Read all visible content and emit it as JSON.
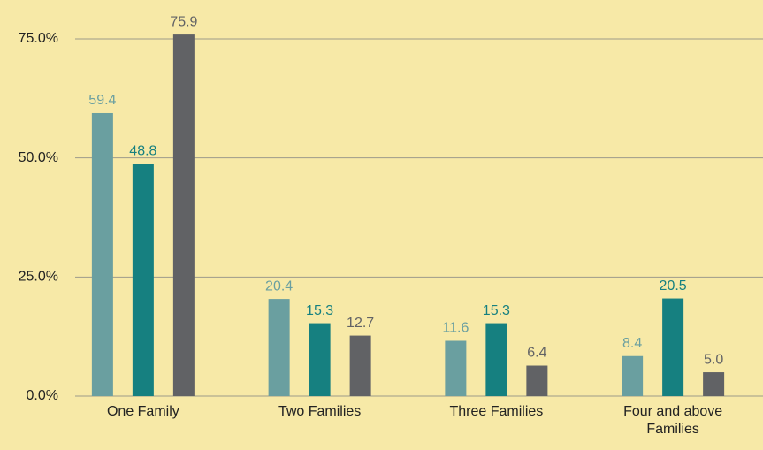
{
  "chart_data": {
    "type": "bar",
    "categories": [
      "One Family",
      "Two Families",
      "Three Families",
      "Four and above Families"
    ],
    "series": [
      {
        "color": "#6a9fa0",
        "values": [
          59.4,
          20.4,
          11.6,
          8.4
        ],
        "value_labels": [
          "59.4",
          "20.4",
          "11.6",
          "8.4"
        ]
      },
      {
        "color": "#168080",
        "values": [
          48.8,
          15.3,
          15.3,
          20.5
        ],
        "value_labels": [
          "48.8",
          "15.3",
          "15.3",
          "20.5"
        ]
      },
      {
        "color": "#616265",
        "values": [
          75.9,
          12.7,
          6.4,
          5.0
        ],
        "value_labels": [
          "75.9",
          "12.7",
          "6.4",
          "5.0"
        ]
      }
    ],
    "ylim": [
      0,
      80
    ],
    "yticks": [
      {
        "value": 0,
        "label": "0.0%"
      },
      {
        "value": 25,
        "label": "25.0%"
      },
      {
        "value": 50,
        "label": "50.0%"
      },
      {
        "value": 75,
        "label": "75.0%"
      }
    ],
    "grid": true
  }
}
